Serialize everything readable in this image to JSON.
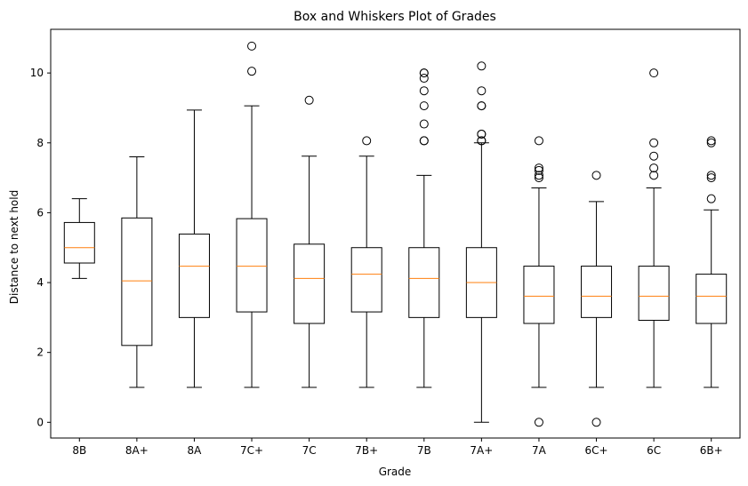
{
  "chart_data": {
    "type": "box",
    "title": "Box and Whiskers Plot of Grades",
    "xlabel": "Grade",
    "ylabel": "Distance to next hold",
    "ylim": [
      -0.45,
      11.25
    ],
    "yticks": [
      "0",
      "2",
      "4",
      "6",
      "8",
      "10"
    ],
    "grid": false,
    "colors": {
      "box": "#000000",
      "median": "#ff7f0e",
      "background": "#ffffff"
    },
    "categories": [
      "8B",
      "8A+",
      "8A",
      "7C+",
      "7C",
      "7B+",
      "7B",
      "7A+",
      "7A",
      "6C+",
      "6C",
      "6B+"
    ],
    "boxes": [
      {
        "category": "8B",
        "whisker_low": 4.12,
        "q1": 4.56,
        "median": 5.0,
        "q3": 5.72,
        "whisker_high": 6.4,
        "outliers": []
      },
      {
        "category": "8A+",
        "whisker_low": 1.0,
        "q1": 2.2,
        "median": 4.05,
        "q3": 5.85,
        "whisker_high": 7.6,
        "outliers": []
      },
      {
        "category": "8A",
        "whisker_low": 1.0,
        "q1": 3.0,
        "median": 4.47,
        "q3": 5.39,
        "whisker_high": 8.94,
        "outliers": []
      },
      {
        "category": "7C+",
        "whisker_low": 1.0,
        "q1": 3.16,
        "median": 4.47,
        "q3": 5.83,
        "whisker_high": 9.06,
        "outliers": [
          10.05,
          10.77
        ]
      },
      {
        "category": "7C",
        "whisker_low": 1.0,
        "q1": 2.83,
        "median": 4.12,
        "q3": 5.1,
        "whisker_high": 7.62,
        "outliers": [
          9.22
        ]
      },
      {
        "category": "7B+",
        "whisker_low": 1.0,
        "q1": 3.16,
        "median": 4.24,
        "q3": 5.0,
        "whisker_high": 7.62,
        "outliers": [
          8.06
        ]
      },
      {
        "category": "7B",
        "whisker_low": 1.0,
        "q1": 3.0,
        "median": 4.12,
        "q3": 5.0,
        "whisker_high": 7.07,
        "outliers": [
          8.06,
          8.06,
          8.54,
          9.06,
          9.49,
          9.85,
          10.0,
          10.0
        ]
      },
      {
        "category": "7A+",
        "whisker_low": 0.0,
        "q1": 3.0,
        "median": 4.0,
        "q3": 5.0,
        "whisker_high": 8.0,
        "outliers": [
          8.06,
          8.06,
          8.25,
          8.25,
          9.06,
          9.06,
          9.49,
          10.2
        ]
      },
      {
        "category": "7A",
        "whisker_low": 1.0,
        "q1": 2.83,
        "median": 3.61,
        "q3": 4.47,
        "whisker_high": 6.71,
        "outliers": [
          0.0,
          7.0,
          7.07,
          7.21,
          7.28,
          8.06
        ]
      },
      {
        "category": "6C+",
        "whisker_low": 1.0,
        "q1": 3.0,
        "median": 3.61,
        "q3": 4.47,
        "whisker_high": 6.32,
        "outliers": [
          0.0,
          7.07
        ]
      },
      {
        "category": "6C",
        "whisker_low": 1.0,
        "q1": 2.92,
        "median": 3.61,
        "q3": 4.47,
        "whisker_high": 6.71,
        "outliers": [
          7.07,
          7.28,
          7.62,
          8.0,
          10.0
        ]
      },
      {
        "category": "6B+",
        "whisker_low": 1.0,
        "q1": 2.83,
        "median": 3.61,
        "q3": 4.24,
        "whisker_high": 6.08,
        "outliers": [
          6.4,
          7.0,
          7.07,
          8.0,
          8.06
        ]
      }
    ]
  }
}
